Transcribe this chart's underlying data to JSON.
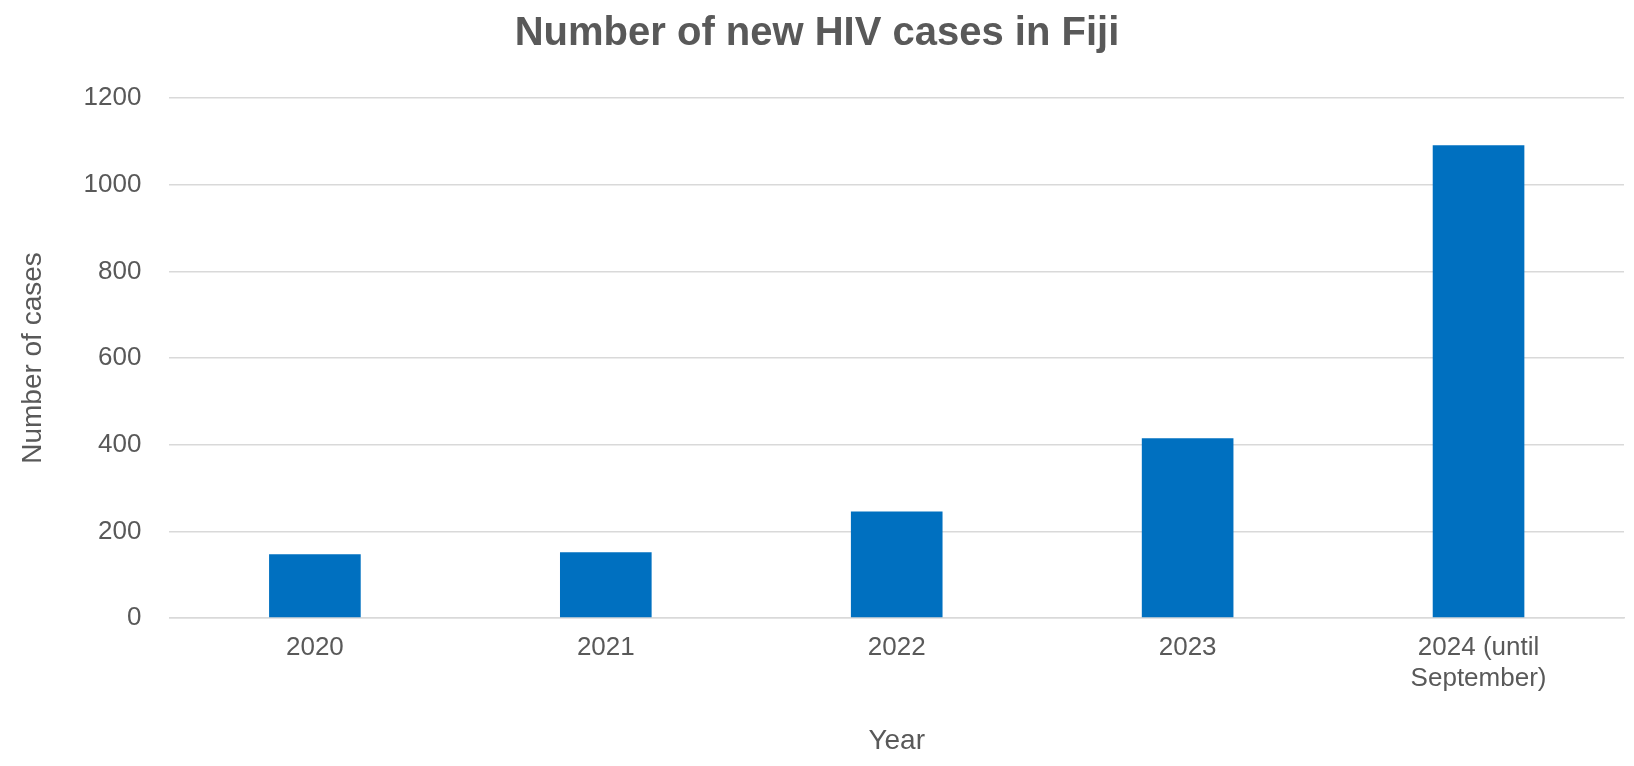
{
  "chart_data": {
    "type": "bar",
    "title": "Number of new HIV cases in Fiji",
    "xlabel": "Year",
    "ylabel": "Number of cases",
    "categories": [
      "2020",
      "2021",
      "2022",
      "2023",
      "2024 (until September)"
    ],
    "values": [
      147,
      152,
      246,
      415,
      1091
    ],
    "color": "#0070c0",
    "ylim": [
      0,
      1200
    ],
    "yticks": [
      0,
      200,
      400,
      600,
      800,
      1000,
      1200
    ],
    "grid": "y"
  }
}
